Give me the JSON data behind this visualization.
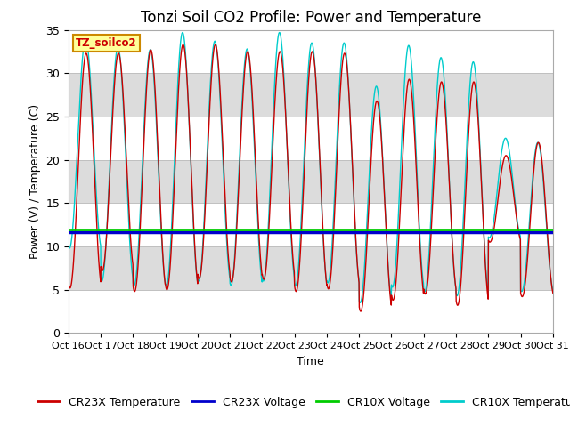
{
  "title": "Tonzi Soil CO2 Profile: Power and Temperature",
  "xlabel": "Time",
  "ylabel": "Power (V) / Temperature (C)",
  "ylim": [
    0,
    35
  ],
  "cr23x_voltage_level": 11.6,
  "cr10x_voltage_level": 12.0,
  "cr23x_color": "#cc0000",
  "cr10x_color": "#00cccc",
  "cr23x_voltage_color": "#0000cc",
  "cr10x_voltage_color": "#00cc00",
  "background_color": "#ffffff",
  "plot_bg_color": "#f0f0f0",
  "band_light": "#ffffff",
  "band_dark": "#dcdcdc",
  "label_box_text": "TZ_soilco2",
  "label_box_bg": "#ffff99",
  "label_box_border": "#cc8800",
  "title_fontsize": 12,
  "axis_fontsize": 9,
  "legend_fontsize": 9,
  "cr23x_temp_peaks": [
    32.3,
    32.3,
    32.7,
    33.3,
    33.3,
    32.5,
    32.5,
    32.5,
    32.3,
    26.8,
    29.3,
    29.0,
    29.0,
    20.5,
    22.0
  ],
  "cr23x_temp_mins": [
    5.2,
    7.2,
    4.8,
    5.0,
    6.3,
    5.9,
    6.2,
    4.8,
    5.1,
    2.5,
    3.8,
    4.5,
    3.2,
    10.5,
    4.2
  ],
  "cr10x_temp_peaks": [
    34.0,
    33.0,
    32.7,
    34.7,
    33.7,
    32.8,
    34.7,
    33.5,
    33.5,
    28.5,
    33.2,
    31.8,
    31.3,
    22.5,
    22.0
  ],
  "cr10x_temp_mins": [
    9.8,
    6.0,
    5.5,
    5.5,
    6.0,
    5.5,
    6.0,
    5.5,
    5.8,
    3.5,
    5.3,
    4.8,
    4.3,
    11.0,
    4.8
  ]
}
